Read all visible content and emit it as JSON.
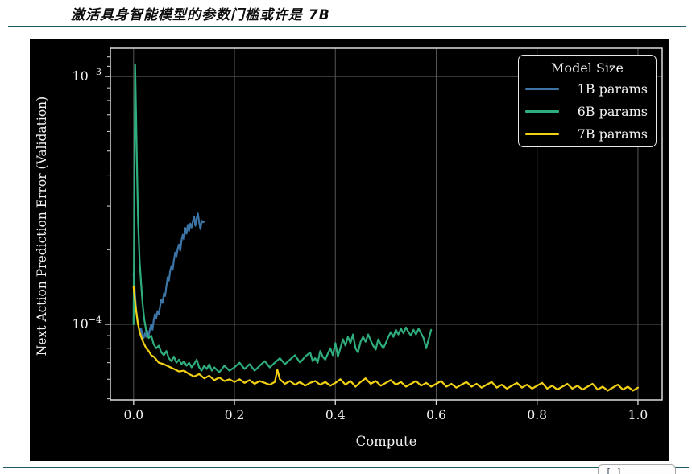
{
  "page": {
    "title": "激活具身智能模型的参数门槛或许是 7B",
    "rule_color": "#1e5a66"
  },
  "bottom": {
    "citation_label": "[ ]"
  },
  "chart_data": {
    "type": "line",
    "title": "",
    "xlabel": "Compute",
    "ylabel": "Next Action Prediction Error (Validation)",
    "xscale": "linear",
    "yscale": "log",
    "xlim": [
      -0.046,
      1.048
    ],
    "ylim": [
      4.95e-05,
      0.0013
    ],
    "grid": true,
    "background": "#000000",
    "text_color": "#f2f2f2",
    "grid_color": "#565656",
    "spine_color": "#dcdcdc",
    "x_ticks": {
      "values": [
        0,
        0.2,
        0.4,
        0.6,
        0.8,
        1.0
      ],
      "labels": [
        "0.0",
        "0.2",
        "0.4",
        "0.6",
        "0.8",
        "1.0"
      ]
    },
    "y_ticks": [
      {
        "value": 0.001,
        "base": "10",
        "exp": "−3"
      },
      {
        "value": 0.0001,
        "base": "10",
        "exp": "−4"
      }
    ],
    "y_minor_ticks": [
      5e-05,
      6e-05,
      7e-05,
      8e-05,
      9e-05,
      0.0002,
      0.0003,
      0.0004,
      0.0005,
      0.0006,
      0.0007,
      0.0008,
      0.0009,
      0.0011,
      0.0012
    ],
    "legend": {
      "title": "Model Size",
      "position": "upper-right"
    },
    "series": [
      {
        "name": "1B params",
        "color": "#3c74a6",
        "points": [
          [
            0,
            0.00016
          ],
          [
            0.0025,
            0.000135
          ],
          [
            0.005,
            0.000115
          ],
          [
            0.0075,
            0.000105
          ],
          [
            0.01,
            9.8e-05
          ],
          [
            0.0125,
            9.3e-05
          ],
          [
            0.015,
            9.6e-05
          ],
          [
            0.0175,
            9e-05
          ],
          [
            0.02,
            8.8e-05
          ],
          [
            0.0225,
            9.2e-05
          ],
          [
            0.025,
            8.9e-05
          ],
          [
            0.0275,
            9.4e-05
          ],
          [
            0.03,
            9e-05
          ],
          [
            0.0325,
            9.6e-05
          ],
          [
            0.035,
            0.0001
          ],
          [
            0.0375,
            9.5e-05
          ],
          [
            0.04,
            0.000104
          ],
          [
            0.0425,
            0.00011
          ],
          [
            0.045,
            0.000106
          ],
          [
            0.0475,
            0.000113
          ],
          [
            0.05,
            0.00011
          ],
          [
            0.0525,
            0.000118
          ],
          [
            0.055,
            0.000126
          ],
          [
            0.0575,
            0.000122
          ],
          [
            0.06,
            0.000133
          ],
          [
            0.0625,
            0.00013
          ],
          [
            0.065,
            0.000142
          ],
          [
            0.0675,
            0.000155
          ],
          [
            0.07,
            0.00015
          ],
          [
            0.0725,
            0.000164
          ],
          [
            0.075,
            0.000172
          ],
          [
            0.0775,
            0.000166
          ],
          [
            0.08,
            0.000182
          ],
          [
            0.0825,
            0.000195
          ],
          [
            0.085,
            0.000188
          ],
          [
            0.0875,
            0.000202
          ],
          [
            0.09,
            0.00021
          ],
          [
            0.0925,
            0.000198
          ],
          [
            0.095,
            0.000218
          ],
          [
            0.0975,
            0.00023
          ],
          [
            0.1,
            0.00022
          ],
          [
            0.1025,
            0.000245
          ],
          [
            0.105,
            0.000232
          ],
          [
            0.1075,
            0.000252
          ],
          [
            0.11,
            0.000238
          ],
          [
            0.1125,
            0.000255
          ],
          [
            0.115,
            0.000246
          ],
          [
            0.1175,
            0.00026
          ],
          [
            0.12,
            0.000272
          ],
          [
            0.1225,
            0.00025
          ],
          [
            0.125,
            0.000268
          ],
          [
            0.1275,
            0.00028
          ],
          [
            0.13,
            0.000258
          ],
          [
            0.1325,
            0.000242
          ],
          [
            0.135,
            0.000262
          ],
          [
            0.1375,
            0.000258
          ],
          [
            0.14,
            0.00026
          ]
        ]
      },
      {
        "name": "6B params",
        "color": "#2fae7d",
        "points": [
          [
            0,
            0.0001
          ],
          [
            0.003,
            0.00112
          ],
          [
            0.005,
            0.0007
          ],
          [
            0.007,
            0.0004
          ],
          [
            0.009,
            0.00026
          ],
          [
            0.012,
            0.00018
          ],
          [
            0.015,
            0.000145
          ],
          [
            0.018,
            0.00012
          ],
          [
            0.021,
            0.000105
          ],
          [
            0.025,
            9.4e-05
          ],
          [
            0.03,
            8.8e-05
          ],
          [
            0.035,
            9e-05
          ],
          [
            0.04,
            8.3e-05
          ],
          [
            0.045,
            8e-05
          ],
          [
            0.05,
            8.2e-05
          ],
          [
            0.055,
            7.7e-05
          ],
          [
            0.06,
            7.5e-05
          ],
          [
            0.065,
            7.8e-05
          ],
          [
            0.07,
            7.3e-05
          ],
          [
            0.075,
            7.1e-05
          ],
          [
            0.08,
            7.4e-05
          ],
          [
            0.085,
            7e-05
          ],
          [
            0.09,
            7.2e-05
          ],
          [
            0.095,
            6.9e-05
          ],
          [
            0.1,
            7.1e-05
          ],
          [
            0.105,
            6.8e-05
          ],
          [
            0.11,
            7e-05
          ],
          [
            0.115,
            6.7e-05
          ],
          [
            0.12,
            6.9e-05
          ],
          [
            0.125,
            7.2e-05
          ],
          [
            0.13,
            6.7e-05
          ],
          [
            0.135,
            6.5e-05
          ],
          [
            0.14,
            6.8e-05
          ],
          [
            0.145,
            6.6e-05
          ],
          [
            0.15,
            6.9e-05
          ],
          [
            0.155,
            6.5e-05
          ],
          [
            0.16,
            6.7e-05
          ],
          [
            0.17,
            6.4e-05
          ],
          [
            0.18,
            6.8e-05
          ],
          [
            0.19,
            6.5e-05
          ],
          [
            0.2,
            6.7e-05
          ],
          [
            0.21,
            7e-05
          ],
          [
            0.22,
            6.6e-05
          ],
          [
            0.23,
            6.9e-05
          ],
          [
            0.24,
            6.5e-05
          ],
          [
            0.25,
            6.8e-05
          ],
          [
            0.26,
            7.1e-05
          ],
          [
            0.27,
            6.7e-05
          ],
          [
            0.28,
            7e-05
          ],
          [
            0.29,
            7.3e-05
          ],
          [
            0.3,
            6.9e-05
          ],
          [
            0.31,
            7.2e-05
          ],
          [
            0.32,
            7.5e-05
          ],
          [
            0.33,
            7e-05
          ],
          [
            0.34,
            7.4e-05
          ],
          [
            0.35,
            7.7e-05
          ],
          [
            0.355,
            7.1e-05
          ],
          [
            0.36,
            7.3e-05
          ],
          [
            0.365,
            7e-05
          ],
          [
            0.37,
            7.8e-05
          ],
          [
            0.375,
            7.4e-05
          ],
          [
            0.38,
            7.2e-05
          ],
          [
            0.385,
            7.6e-05
          ],
          [
            0.39,
            8e-05
          ],
          [
            0.395,
            7.5e-05
          ],
          [
            0.4,
            8.4e-05
          ],
          [
            0.405,
            7.4e-05
          ],
          [
            0.41,
            8e-05
          ],
          [
            0.415,
            8.7e-05
          ],
          [
            0.42,
            8.2e-05
          ],
          [
            0.425,
            8.9e-05
          ],
          [
            0.43,
            8.4e-05
          ],
          [
            0.435,
            9.1e-05
          ],
          [
            0.44,
            8e-05
          ],
          [
            0.445,
            7.7e-05
          ],
          [
            0.45,
            8.5e-05
          ],
          [
            0.455,
            8.9e-05
          ],
          [
            0.46,
            8.5e-05
          ],
          [
            0.465,
            9.1e-05
          ],
          [
            0.47,
            8.6e-05
          ],
          [
            0.475,
            8.2e-05
          ],
          [
            0.48,
            7.9e-05
          ],
          [
            0.485,
            8.7e-05
          ],
          [
            0.49,
            8.3e-05
          ],
          [
            0.495,
            8e-05
          ],
          [
            0.5,
            8.4e-05
          ],
          [
            0.505,
            8.9e-05
          ],
          [
            0.51,
            9.3e-05
          ],
          [
            0.515,
            8.9e-05
          ],
          [
            0.52,
            9.5e-05
          ],
          [
            0.525,
            9.1e-05
          ],
          [
            0.53,
            9.6e-05
          ],
          [
            0.535,
            9.2e-05
          ],
          [
            0.54,
            9.7e-05
          ],
          [
            0.545,
            9.3e-05
          ],
          [
            0.55,
            9e-05
          ],
          [
            0.555,
            9.5e-05
          ],
          [
            0.56,
            9.1e-05
          ],
          [
            0.565,
            9.6e-05
          ],
          [
            0.57,
            9.2e-05
          ],
          [
            0.575,
            8.8e-05
          ],
          [
            0.58,
            8e-05
          ],
          [
            0.585,
            8.7e-05
          ],
          [
            0.59,
            9.5e-05
          ]
        ]
      },
      {
        "name": "7B params",
        "color": "#f2d114",
        "points": [
          [
            0,
            0.000142
          ],
          [
            0.004,
            0.000118
          ],
          [
            0.008,
            0.000102
          ],
          [
            0.012,
            9.3e-05
          ],
          [
            0.016,
            8.8e-05
          ],
          [
            0.02,
            8.4e-05
          ],
          [
            0.025,
            8e-05
          ],
          [
            0.03,
            7.8e-05
          ],
          [
            0.035,
            7.5e-05
          ],
          [
            0.04,
            7.4e-05
          ],
          [
            0.045,
            7.2e-05
          ],
          [
            0.05,
            7e-05
          ],
          [
            0.06,
            6.9e-05
          ],
          [
            0.07,
            6.75e-05
          ],
          [
            0.08,
            6.6e-05
          ],
          [
            0.09,
            6.45e-05
          ],
          [
            0.1,
            6.5e-05
          ],
          [
            0.11,
            6.3e-05
          ],
          [
            0.12,
            6.15e-05
          ],
          [
            0.13,
            6.3e-05
          ],
          [
            0.14,
            6.05e-05
          ],
          [
            0.15,
            6.2e-05
          ],
          [
            0.16,
            5.95e-05
          ],
          [
            0.17,
            6.1e-05
          ],
          [
            0.18,
            5.9e-05
          ],
          [
            0.19,
            6e-05
          ],
          [
            0.2,
            5.85e-05
          ],
          [
            0.21,
            6e-05
          ],
          [
            0.22,
            5.8e-05
          ],
          [
            0.23,
            5.95e-05
          ],
          [
            0.24,
            5.75e-05
          ],
          [
            0.25,
            5.9e-05
          ],
          [
            0.26,
            5.8e-05
          ],
          [
            0.27,
            5.7e-05
          ],
          [
            0.28,
            5.85e-05
          ],
          [
            0.285,
            6.55e-05
          ],
          [
            0.29,
            6e-05
          ],
          [
            0.3,
            5.75e-05
          ],
          [
            0.31,
            5.9e-05
          ],
          [
            0.32,
            5.7e-05
          ],
          [
            0.33,
            5.85e-05
          ],
          [
            0.34,
            5.65e-05
          ],
          [
            0.35,
            5.8e-05
          ],
          [
            0.36,
            5.9e-05
          ],
          [
            0.37,
            5.7e-05
          ],
          [
            0.38,
            5.85e-05
          ],
          [
            0.39,
            5.65e-05
          ],
          [
            0.4,
            5.8e-05
          ],
          [
            0.41,
            6e-05
          ],
          [
            0.42,
            5.7e-05
          ],
          [
            0.43,
            5.9e-05
          ],
          [
            0.44,
            5.6e-05
          ],
          [
            0.45,
            5.85e-05
          ],
          [
            0.46,
            6.05e-05
          ],
          [
            0.47,
            5.75e-05
          ],
          [
            0.48,
            5.9e-05
          ],
          [
            0.49,
            5.65e-05
          ],
          [
            0.5,
            5.8e-05
          ],
          [
            0.51,
            5.95e-05
          ],
          [
            0.52,
            5.7e-05
          ],
          [
            0.53,
            5.85e-05
          ],
          [
            0.54,
            5.6e-05
          ],
          [
            0.55,
            5.75e-05
          ],
          [
            0.56,
            5.9e-05
          ],
          [
            0.57,
            5.65e-05
          ],
          [
            0.58,
            5.8e-05
          ],
          [
            0.59,
            5.6e-05
          ],
          [
            0.6,
            5.75e-05
          ],
          [
            0.61,
            5.9e-05
          ],
          [
            0.62,
            5.6e-05
          ],
          [
            0.63,
            5.75e-05
          ],
          [
            0.64,
            5.55e-05
          ],
          [
            0.65,
            5.7e-05
          ],
          [
            0.66,
            5.85e-05
          ],
          [
            0.67,
            5.6e-05
          ],
          [
            0.68,
            5.75e-05
          ],
          [
            0.69,
            5.55e-05
          ],
          [
            0.7,
            5.7e-05
          ],
          [
            0.71,
            5.85e-05
          ],
          [
            0.72,
            5.55e-05
          ],
          [
            0.73,
            5.7e-05
          ],
          [
            0.74,
            5.5e-05
          ],
          [
            0.75,
            5.65e-05
          ],
          [
            0.76,
            5.8e-05
          ],
          [
            0.77,
            5.55e-05
          ],
          [
            0.78,
            5.7e-05
          ],
          [
            0.79,
            5.5e-05
          ],
          [
            0.8,
            5.65e-05
          ],
          [
            0.81,
            5.8e-05
          ],
          [
            0.82,
            5.5e-05
          ],
          [
            0.83,
            5.65e-05
          ],
          [
            0.84,
            5.45e-05
          ],
          [
            0.85,
            5.6e-05
          ],
          [
            0.86,
            5.75e-05
          ],
          [
            0.87,
            5.5e-05
          ],
          [
            0.88,
            5.65e-05
          ],
          [
            0.89,
            5.45e-05
          ],
          [
            0.9,
            5.6e-05
          ],
          [
            0.91,
            5.75e-05
          ],
          [
            0.92,
            5.45e-05
          ],
          [
            0.93,
            5.6e-05
          ],
          [
            0.94,
            5.4e-05
          ],
          [
            0.95,
            5.55e-05
          ],
          [
            0.96,
            5.7e-05
          ],
          [
            0.97,
            5.45e-05
          ],
          [
            0.98,
            5.6e-05
          ],
          [
            0.99,
            5.4e-05
          ],
          [
            1.0,
            5.55e-05
          ]
        ]
      }
    ]
  }
}
